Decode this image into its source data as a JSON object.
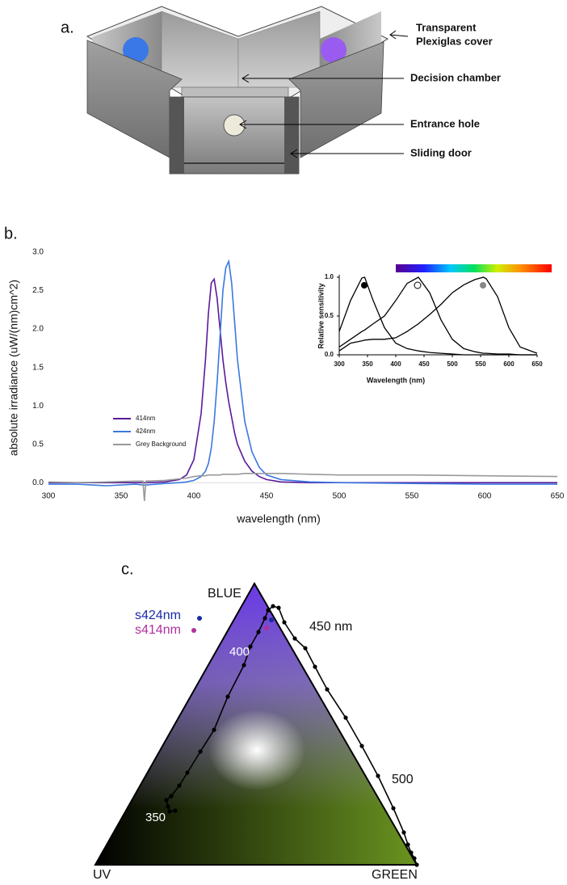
{
  "panel_a": {
    "label": "a.",
    "cover": [
      "Transparent",
      "Plexiglas cover"
    ],
    "decision": "Decision chamber",
    "entrance": "Entrance hole",
    "door": "Sliding door"
  },
  "panel_b": {
    "label": "b."
  },
  "chart_data": [
    {
      "type": "line",
      "xlabel": "wavelength (nm)",
      "ylabel": "absolute irradiance (uW/(nm)cm^2)",
      "x": [
        300,
        320,
        340,
        360,
        365,
        366,
        367,
        380,
        390,
        395,
        400,
        405,
        408,
        410,
        412,
        414,
        416,
        418,
        420,
        422,
        424,
        426,
        428,
        430,
        435,
        440,
        445,
        450,
        460,
        480,
        500,
        550,
        600,
        650
      ],
      "series": [
        {
          "name": "414nm",
          "color": "#5a1a9a",
          "values": [
            0,
            0,
            0,
            0,
            0,
            0,
            0,
            0.01,
            0.04,
            0.1,
            0.3,
            0.9,
            1.6,
            2.2,
            2.6,
            2.65,
            2.4,
            2.0,
            1.6,
            1.3,
            1.05,
            0.85,
            0.65,
            0.5,
            0.28,
            0.15,
            0.08,
            0.04,
            0.01,
            0,
            0,
            0,
            0,
            0
          ]
        },
        {
          "name": "424nm",
          "color": "#3a78e0",
          "values": [
            -0.02,
            -0.02,
            -0.04,
            -0.02,
            -0.03,
            -0.03,
            -0.03,
            -0.01,
            0,
            0.01,
            0.03,
            0.08,
            0.15,
            0.25,
            0.45,
            0.8,
            1.3,
            1.9,
            2.5,
            2.8,
            2.88,
            2.6,
            2.1,
            1.6,
            0.8,
            0.4,
            0.2,
            0.1,
            0.04,
            0.01,
            0,
            -0.01,
            -0.02,
            -0.02
          ]
        },
        {
          "name": "Grey Background",
          "color": "#999999",
          "values": [
            0.01,
            0,
            0.01,
            0.02,
            0.02,
            -0.24,
            0.02,
            0.03,
            0.05,
            0.06,
            0.08,
            0.09,
            0.09,
            0.1,
            0.1,
            0.1,
            0.1,
            0.1,
            0.11,
            0.11,
            0.11,
            0.11,
            0.11,
            0.11,
            0.12,
            0.12,
            0.12,
            0.12,
            0.12,
            0.11,
            0.1,
            0.1,
            0.09,
            0.08
          ]
        }
      ],
      "xlim": [
        300,
        650
      ],
      "xticks": [
        300,
        350,
        400,
        450,
        500,
        550,
        600,
        650
      ],
      "ylim": [
        -0.25,
        3.0
      ],
      "yticks": [
        {
          "value": 0,
          "label": "0.0"
        },
        {
          "value": 0.5,
          "label": "0.5"
        },
        {
          "value": 1,
          "label": "1.0"
        },
        {
          "value": 1.5,
          "label": "1.5"
        },
        {
          "value": 2,
          "label": "2.0"
        },
        {
          "value": 2.5,
          "label": "2.5"
        },
        {
          "value": 3,
          "label": "3.0"
        }
      ]
    },
    {
      "type": "line",
      "xlabel": "Wavelength (nm)",
      "ylabel": "Relative sensitivity",
      "x": [
        300,
        320,
        340,
        345,
        360,
        380,
        400,
        420,
        440,
        460,
        480,
        500,
        520,
        540,
        555,
        560,
        580,
        600,
        620,
        650
      ],
      "series": [
        {
          "color": "#000000",
          "values": [
            0.3,
            0.7,
            0.99,
            1.0,
            0.7,
            0.35,
            0.15,
            0.08,
            0.05,
            0.03,
            0.02,
            0.01,
            0,
            0,
            0,
            0,
            0,
            0,
            0,
            0
          ]
        },
        {
          "color": "#000000",
          "values": [
            0.1,
            0.2,
            0.3,
            0.32,
            0.4,
            0.5,
            0.7,
            0.92,
            1.0,
            0.8,
            0.45,
            0.2,
            0.08,
            0.04,
            0.02,
            0.02,
            0.01,
            0.01,
            0,
            0
          ]
        },
        {
          "color": "#000000",
          "values": [
            0.05,
            0.15,
            0.18,
            0.19,
            0.2,
            0.2,
            0.22,
            0.3,
            0.4,
            0.52,
            0.65,
            0.8,
            0.9,
            0.97,
            1.0,
            0.98,
            0.75,
            0.35,
            0.1,
            0.02
          ]
        }
      ],
      "xlim": [
        300,
        650
      ],
      "xticks": [
        300,
        350,
        400,
        450,
        500,
        550,
        600,
        650
      ],
      "ylim": [
        0,
        1
      ],
      "yticks": [
        {
          "value": 0,
          "label": "0.0"
        },
        {
          "value": 0.5,
          "label": "0.5"
        },
        {
          "value": 1,
          "label": "1.0"
        }
      ]
    }
  ],
  "panel_c": {
    "label": "c.",
    "blue": "BLUE",
    "uv": "UV",
    "green": "GREEN",
    "w450": "450 nm",
    "w400": "400",
    "w350": "350",
    "w500": "500",
    "s424": "s424nm",
    "s414": "s414nm"
  }
}
